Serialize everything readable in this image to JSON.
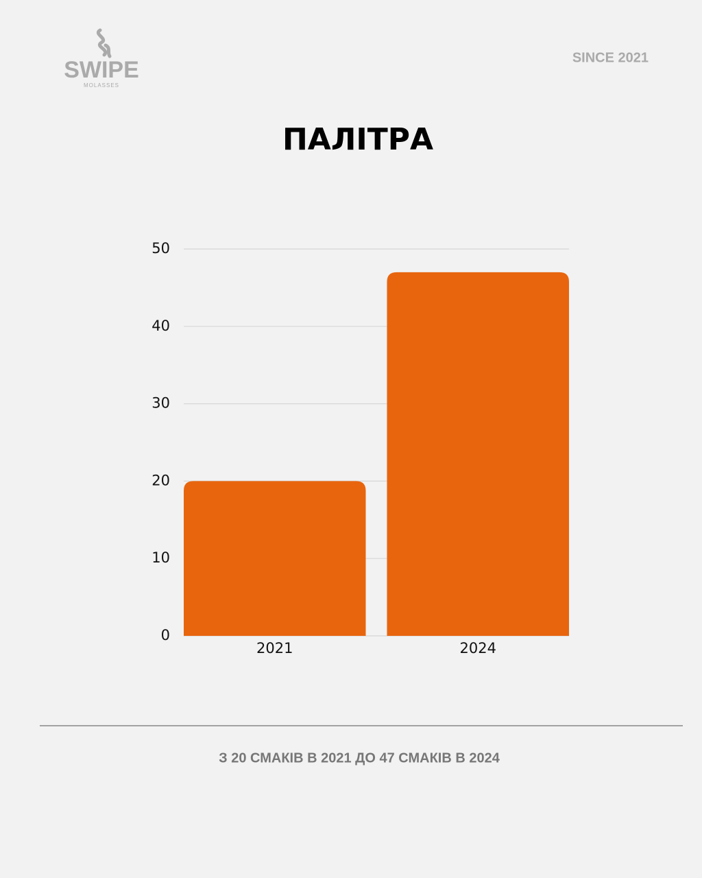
{
  "header": {
    "logo": "SWIPE",
    "logo_sub": "MOLASSES",
    "since": "SINCE 2021"
  },
  "chart_data": {
    "type": "bar",
    "title": "ПАЛІТРА",
    "categories": [
      "2021",
      "2024"
    ],
    "values": [
      20,
      47
    ],
    "color": "#e8650e",
    "ylim": [
      0,
      50
    ],
    "yticks": [
      0,
      10,
      20,
      30,
      40,
      50
    ],
    "grid": true
  },
  "footer": {
    "caption": "З 20 СМАКІВ В 2021 ДО 47 СМАКІВ В 2024"
  }
}
